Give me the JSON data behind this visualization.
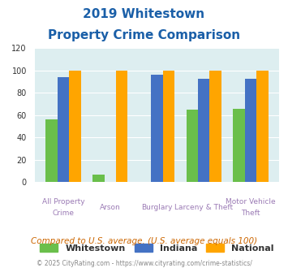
{
  "title_line1": "2019 Whitestown",
  "title_line2": "Property Crime Comparison",
  "categories": [
    "All Property Crime",
    "Arson",
    "Burglary",
    "Larceny & Theft",
    "Motor Vehicle Theft"
  ],
  "whitestown": [
    56,
    7,
    0,
    65,
    66
  ],
  "indiana": [
    94,
    0,
    96,
    93,
    93
  ],
  "national": [
    100,
    100,
    100,
    100,
    100
  ],
  "whitestown_color": "#6abf4b",
  "indiana_color": "#4472c4",
  "national_color": "#ffa500",
  "ylim": [
    0,
    120
  ],
  "yticks": [
    0,
    20,
    40,
    60,
    80,
    100,
    120
  ],
  "bg_color": "#ddeef0",
  "subtitle_note": "Compared to U.S. average. (U.S. average equals 100)",
  "footer": "© 2025 CityRating.com - https://www.cityrating.com/crime-statistics/",
  "title_color": "#1a5fa8",
  "xlabel_color": "#9b7bb5",
  "note_color": "#cc6600",
  "footer_color": "#888888"
}
